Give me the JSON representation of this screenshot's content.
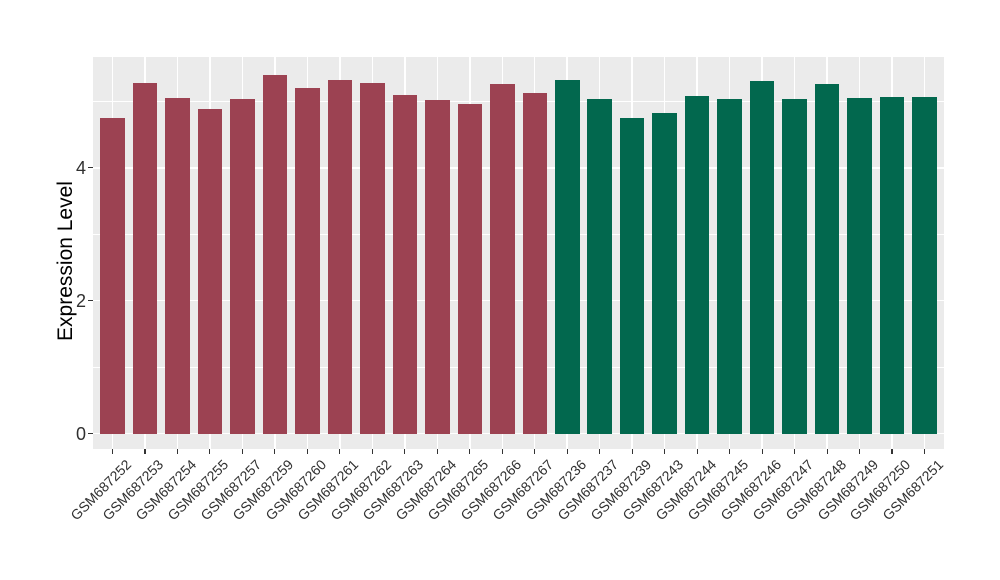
{
  "page": {
    "background": "#FFFFFF"
  },
  "chart_data": {
    "type": "bar",
    "title": "",
    "xlabel": "",
    "ylabel": "Expression Level",
    "y_ticks": [
      0,
      2,
      4
    ],
    "y_minor_gridlines": [
      1,
      3,
      5
    ],
    "ylim": [
      -0.27,
      5.67
    ],
    "grid": "white major+minor gridlines on grey panel",
    "legend_position": "none",
    "panel_background": "#EBEBEB",
    "gridline_color": "#FFFFFF",
    "tick_color": "#333333",
    "axis_text_color": "#303030",
    "axis_title_color": "#000000",
    "group_colors": {
      "maroon": "#9C4252",
      "green": "#02684E"
    },
    "categories": [
      "GSM687252",
      "GSM687253",
      "GSM687254",
      "GSM687255",
      "GSM687257",
      "GSM687259",
      "GSM687260",
      "GSM687261",
      "GSM687262",
      "GSM687263",
      "GSM687264",
      "GSM687265",
      "GSM687266",
      "GSM687267",
      "GSM687236",
      "GSM687237",
      "GSM687239",
      "GSM687243",
      "GSM687244",
      "GSM687245",
      "GSM687246",
      "GSM687247",
      "GSM687248",
      "GSM687249",
      "GSM687250",
      "GSM687251"
    ],
    "values": [
      4.75,
      5.28,
      5.06,
      4.89,
      5.04,
      5.4,
      5.2,
      5.32,
      5.28,
      5.1,
      5.03,
      4.97,
      5.27,
      5.13,
      5.32,
      5.04,
      4.75,
      4.83,
      5.08,
      5.04,
      5.31,
      5.04,
      5.27,
      5.06,
      5.07,
      5.07
    ],
    "groups": [
      "maroon",
      "maroon",
      "maroon",
      "maroon",
      "maroon",
      "maroon",
      "maroon",
      "maroon",
      "maroon",
      "maroon",
      "maroon",
      "maroon",
      "maroon",
      "maroon",
      "green",
      "green",
      "green",
      "green",
      "green",
      "green",
      "green",
      "green",
      "green",
      "green",
      "green",
      "green"
    ]
  }
}
